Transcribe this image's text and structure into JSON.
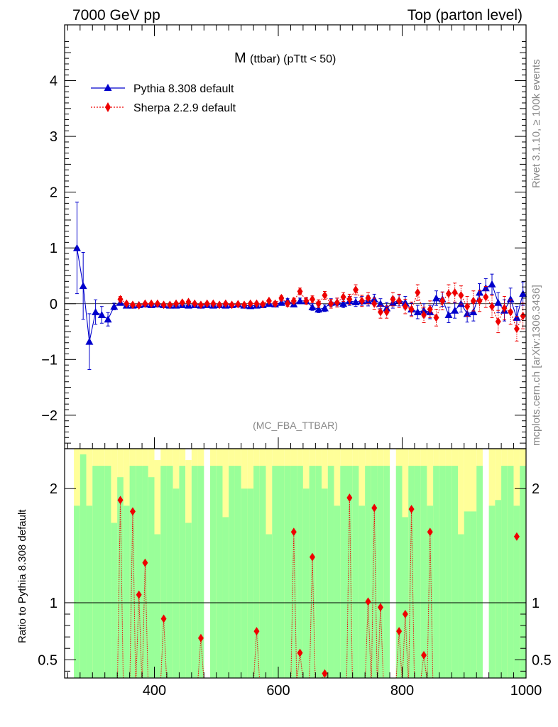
{
  "header": {
    "left": "7000 GeV pp",
    "right": "Top (parton level)"
  },
  "side": {
    "rivet": "Rivet 3.1.10, ≥ 100k events",
    "mcplots": "mcplots.cern.ch [arXiv:1306.3436]"
  },
  "colors": {
    "pythia": "#0000cc",
    "sherpa": "#ee0000",
    "band_green": "#99ff99",
    "band_yellow": "#ffff99"
  },
  "chart_data": [
    {
      "type": "line",
      "title_main": "M",
      "title_sub": "(ttbar) (pTtt < 50)",
      "watermark": "(MC_FBA_TTBAR)",
      "xlim": [
        255,
        1000
      ],
      "ylim": [
        -2.6,
        5.0
      ],
      "x_ticks": [
        400,
        600,
        800,
        1000
      ],
      "y_ticks": [
        -2,
        -1,
        0,
        1,
        2,
        3,
        4
      ],
      "legend_position": "top-left",
      "series": [
        {
          "name": "Pythia 8.308 default",
          "marker": "triangle",
          "x": [
            275,
            285,
            295,
            305,
            315,
            325,
            335,
            345,
            355,
            365,
            375,
            385,
            395,
            405,
            415,
            425,
            435,
            445,
            455,
            465,
            475,
            485,
            495,
            505,
            515,
            525,
            535,
            545,
            555,
            565,
            575,
            585,
            595,
            605,
            615,
            625,
            635,
            645,
            655,
            665,
            675,
            685,
            695,
            705,
            715,
            725,
            735,
            745,
            755,
            765,
            775,
            785,
            795,
            805,
            815,
            825,
            835,
            845,
            855,
            865,
            875,
            885,
            895,
            905,
            915,
            925,
            935,
            945,
            955,
            965,
            975,
            985,
            995
          ],
          "y": [
            1.0,
            0.32,
            -0.68,
            -0.15,
            -0.2,
            -0.28,
            -0.05,
            0.02,
            -0.03,
            -0.03,
            -0.02,
            -0.01,
            -0.02,
            -0.01,
            -0.02,
            -0.03,
            -0.03,
            -0.02,
            -0.03,
            -0.02,
            -0.03,
            -0.02,
            -0.03,
            -0.02,
            -0.03,
            -0.02,
            -0.01,
            -0.03,
            -0.04,
            -0.03,
            -0.02,
            0.0,
            -0.01,
            0.02,
            0.05,
            -0.01,
            0.05,
            0.05,
            -0.06,
            -0.1,
            -0.08,
            0.02,
            0.03,
            0.0,
            0.05,
            0.03,
            0.05,
            0.05,
            0.08,
            0.0,
            -0.08,
            0.02,
            0.06,
            0.02,
            -0.1,
            -0.15,
            -0.12,
            -0.15,
            0.1,
            0.08,
            -0.2,
            -0.12,
            0.0,
            -0.18,
            -0.15,
            0.2,
            0.28,
            0.35,
            0.02,
            -0.12,
            0.08,
            -0.25,
            0.18
          ],
          "err": [
            0.82,
            0.6,
            0.5,
            0.22,
            0.15,
            0.12,
            0.06,
            0.03,
            0.03,
            0.02,
            0.02,
            0.02,
            0.02,
            0.02,
            0.02,
            0.02,
            0.02,
            0.02,
            0.02,
            0.02,
            0.02,
            0.02,
            0.02,
            0.02,
            0.02,
            0.02,
            0.02,
            0.02,
            0.02,
            0.02,
            0.02,
            0.03,
            0.03,
            0.04,
            0.04,
            0.05,
            0.05,
            0.05,
            0.06,
            0.06,
            0.06,
            0.07,
            0.07,
            0.07,
            0.08,
            0.08,
            0.08,
            0.09,
            0.09,
            0.09,
            0.1,
            0.1,
            0.1,
            0.11,
            0.11,
            0.12,
            0.12,
            0.12,
            0.13,
            0.13,
            0.14,
            0.14,
            0.15,
            0.15,
            0.16,
            0.16,
            0.17,
            0.18,
            0.18,
            0.19,
            0.2,
            0.2,
            0.21
          ]
        },
        {
          "name": "Sherpa 2.2.9 default",
          "marker": "diamond",
          "x": [
            345,
            355,
            365,
            375,
            385,
            395,
            405,
            415,
            425,
            435,
            445,
            455,
            465,
            475,
            485,
            495,
            505,
            515,
            525,
            535,
            545,
            555,
            565,
            575,
            585,
            595,
            605,
            615,
            625,
            635,
            645,
            655,
            665,
            675,
            685,
            695,
            705,
            715,
            725,
            735,
            745,
            755,
            765,
            775,
            785,
            795,
            805,
            815,
            825,
            835,
            845,
            855,
            865,
            875,
            885,
            895,
            905,
            915,
            925,
            935,
            945,
            955,
            965,
            975,
            985,
            995
          ],
          "y": [
            0.08,
            0.0,
            -0.02,
            -0.03,
            0.0,
            0.0,
            0.0,
            -0.02,
            -0.02,
            0.0,
            0.02,
            0.03,
            0.0,
            -0.02,
            0.0,
            0.0,
            -0.02,
            0.0,
            -0.02,
            -0.01,
            -0.02,
            0.0,
            0.0,
            -0.01,
            0.05,
            0.0,
            0.1,
            0.0,
            0.05,
            0.22,
            0.05,
            0.08,
            0.0,
            0.15,
            0.0,
            0.02,
            0.12,
            0.08,
            0.25,
            0.05,
            0.1,
            0.0,
            -0.15,
            -0.15,
            0.08,
            0.05,
            -0.05,
            -0.1,
            0.2,
            -0.2,
            -0.1,
            -0.25,
            0.05,
            0.18,
            0.2,
            0.15,
            -0.05,
            0.05,
            0.05,
            0.12,
            -0.05,
            -0.32,
            -0.08,
            -0.15,
            -0.45,
            -0.22
          ],
          "err": [
            0.05,
            0.03,
            0.03,
            0.02,
            0.02,
            0.02,
            0.02,
            0.02,
            0.02,
            0.02,
            0.02,
            0.02,
            0.02,
            0.02,
            0.02,
            0.02,
            0.02,
            0.02,
            0.02,
            0.02,
            0.02,
            0.03,
            0.03,
            0.03,
            0.03,
            0.04,
            0.04,
            0.05,
            0.05,
            0.06,
            0.06,
            0.06,
            0.07,
            0.07,
            0.08,
            0.08,
            0.08,
            0.09,
            0.09,
            0.1,
            0.1,
            0.1,
            0.11,
            0.11,
            0.12,
            0.12,
            0.13,
            0.13,
            0.14,
            0.14,
            0.15,
            0.15,
            0.16,
            0.16,
            0.17,
            0.17,
            0.18,
            0.18,
            0.19,
            0.19,
            0.2,
            0.2,
            0.21,
            0.22,
            0.22,
            0.23
          ]
        }
      ]
    },
    {
      "type": "line",
      "ylabel": "Ratio to Pythia 8.308 default",
      "ylim": [
        0.34,
        2.35
      ],
      "y_ticks": [
        0.5,
        1,
        2
      ],
      "reference": 1.0,
      "ratio": {
        "x": [
          345,
          365,
          375,
          385,
          415,
          475,
          565,
          625,
          635,
          655,
          675,
          715,
          745,
          755,
          765,
          795,
          805,
          815,
          835,
          845,
          985
        ],
        "y": [
          1.9,
          1.8,
          1.07,
          1.35,
          0.86,
          0.69,
          0.75,
          1.62,
          0.56,
          1.4,
          0.38,
          1.92,
          1.01,
          1.83,
          0.96,
          0.75,
          0.9,
          1.82,
          0.54,
          1.62,
          1.58
        ]
      },
      "bands": {
        "x": [
          275,
          285,
          295,
          305,
          315,
          325,
          335,
          345,
          355,
          365,
          375,
          385,
          395,
          405,
          415,
          425,
          435,
          445,
          455,
          465,
          475,
          495,
          505,
          515,
          525,
          535,
          545,
          555,
          565,
          575,
          585,
          595,
          605,
          615,
          625,
          635,
          645,
          655,
          665,
          675,
          685,
          695,
          705,
          715,
          725,
          735,
          745,
          755,
          765,
          775,
          795,
          805,
          815,
          825,
          835,
          845,
          855,
          865,
          875,
          885,
          895,
          905,
          915,
          925,
          945,
          955,
          965,
          975,
          985,
          995
        ],
        "green": [
          1.85,
          2.3,
          1.85,
          2.2,
          2.2,
          2.2,
          1.7,
          2.1,
          1.85,
          2.2,
          2.2,
          2.2,
          2.1,
          1.6,
          2.2,
          2.2,
          2.0,
          2.2,
          1.7,
          2.2,
          2.2,
          2.2,
          2.2,
          1.75,
          2.2,
          2.2,
          2.0,
          2.0,
          2.2,
          2.2,
          1.6,
          2.2,
          2.2,
          2.2,
          2.2,
          2.2,
          2.0,
          2.2,
          2.2,
          2.0,
          2.2,
          1.85,
          2.2,
          2.2,
          2.2,
          1.85,
          2.2,
          2.2,
          2.2,
          2.2,
          2.2,
          1.75,
          2.2,
          2.2,
          2.2,
          1.85,
          2.2,
          2.2,
          2.2,
          2.2,
          1.6,
          1.8,
          1.8,
          2.2,
          1.85,
          1.9,
          2.2,
          2.2,
          1.85,
          2.2
        ],
        "yellow": [
          2.35,
          2.35,
          2.35,
          2.35,
          2.35,
          2.35,
          2.35,
          2.35,
          2.35,
          2.35,
          2.35,
          2.35,
          2.35,
          2.25,
          2.35,
          2.35,
          2.35,
          2.35,
          2.25,
          2.35,
          2.35,
          2.35,
          2.35,
          2.35,
          2.35,
          2.35,
          2.35,
          2.35,
          2.35,
          2.35,
          2.35,
          2.35,
          2.35,
          2.35,
          2.35,
          2.35,
          2.35,
          2.35,
          2.35,
          2.35,
          2.35,
          2.35,
          2.35,
          2.35,
          2.35,
          2.35,
          2.35,
          2.35,
          2.35,
          2.35,
          2.35,
          2.35,
          2.35,
          2.35,
          2.35,
          2.35,
          2.35,
          2.35,
          2.35,
          2.35,
          2.35,
          2.35,
          2.35,
          2.35,
          2.35,
          2.35,
          2.35,
          2.35,
          2.35,
          2.35
        ]
      }
    }
  ]
}
